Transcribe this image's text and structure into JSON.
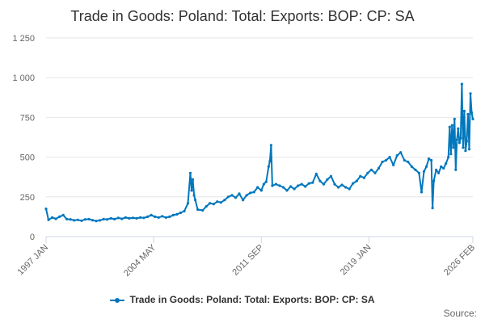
{
  "chart_data": {
    "type": "line",
    "title": "Trade in Goods: Poland: Total: Exports: BOP: CP: SA",
    "xlabel": "",
    "ylabel": "",
    "ylim": [
      0,
      1250
    ],
    "yticks": [
      0,
      250,
      500,
      750,
      1000,
      1250
    ],
    "ytick_labels": [
      "0",
      "250",
      "500",
      "750",
      "1 000",
      "1 250"
    ],
    "xtick_labels": [
      "1997 JAN",
      "2004 MAY",
      "2011 SEP",
      "2019 JAN",
      "2026 FEB"
    ],
    "x_start": "1997 JAN",
    "x_end": "2026 FEB",
    "grid": "horizontal",
    "legend_position": "bottom",
    "series": [
      {
        "name": "Trade in Goods: Poland: Total: Exports: BOP: CP: SA",
        "color": "#0077bd",
        "points": [
          [
            "1997-01",
            175
          ],
          [
            "1997-03",
            105
          ],
          [
            "1997-06",
            120
          ],
          [
            "1997-09",
            112
          ],
          [
            "1997-12",
            125
          ],
          [
            "1998-03",
            135
          ],
          [
            "1998-06",
            110
          ],
          [
            "1998-09",
            108
          ],
          [
            "1998-12",
            102
          ],
          [
            "1999-03",
            105
          ],
          [
            "1999-06",
            100
          ],
          [
            "1999-09",
            108
          ],
          [
            "1999-12",
            110
          ],
          [
            "2000-03",
            103
          ],
          [
            "2000-06",
            98
          ],
          [
            "2000-09",
            102
          ],
          [
            "2000-12",
            110
          ],
          [
            "2001-03",
            108
          ],
          [
            "2001-06",
            115
          ],
          [
            "2001-09",
            110
          ],
          [
            "2001-12",
            118
          ],
          [
            "2002-03",
            112
          ],
          [
            "2002-06",
            120
          ],
          [
            "2002-09",
            115
          ],
          [
            "2002-12",
            118
          ],
          [
            "2003-03",
            115
          ],
          [
            "2003-06",
            120
          ],
          [
            "2003-09",
            118
          ],
          [
            "2003-12",
            125
          ],
          [
            "2004-03",
            135
          ],
          [
            "2004-06",
            125
          ],
          [
            "2004-09",
            120
          ],
          [
            "2004-12",
            128
          ],
          [
            "2005-03",
            120
          ],
          [
            "2005-06",
            125
          ],
          [
            "2005-09",
            135
          ],
          [
            "2005-12",
            140
          ],
          [
            "2006-03",
            150
          ],
          [
            "2006-06",
            160
          ],
          [
            "2006-09",
            210
          ],
          [
            "2006-11",
            400
          ],
          [
            "2006-12",
            290
          ],
          [
            "2007-01",
            360
          ],
          [
            "2007-02",
            260
          ],
          [
            "2007-03",
            230
          ],
          [
            "2007-05",
            170
          ],
          [
            "2007-09",
            165
          ],
          [
            "2007-12",
            190
          ],
          [
            "2008-03",
            210
          ],
          [
            "2008-06",
            205
          ],
          [
            "2008-09",
            220
          ],
          [
            "2008-12",
            215
          ],
          [
            "2009-03",
            230
          ],
          [
            "2009-06",
            250
          ],
          [
            "2009-09",
            260
          ],
          [
            "2009-12",
            245
          ],
          [
            "2010-03",
            270
          ],
          [
            "2010-06",
            230
          ],
          [
            "2010-09",
            260
          ],
          [
            "2010-12",
            275
          ],
          [
            "2011-03",
            280
          ],
          [
            "2011-06",
            310
          ],
          [
            "2011-09",
            290
          ],
          [
            "2011-11",
            330
          ],
          [
            "2012-01",
            345
          ],
          [
            "2012-03",
            440
          ],
          [
            "2012-04",
            475
          ],
          [
            "2012-05",
            575
          ],
          [
            "2012-06",
            320
          ],
          [
            "2012-09",
            330
          ],
          [
            "2012-12",
            320
          ],
          [
            "2013-03",
            310
          ],
          [
            "2013-06",
            290
          ],
          [
            "2013-09",
            315
          ],
          [
            "2013-12",
            300
          ],
          [
            "2014-03",
            320
          ],
          [
            "2014-06",
            330
          ],
          [
            "2014-09",
            315
          ],
          [
            "2014-12",
            335
          ],
          [
            "2015-03",
            340
          ],
          [
            "2015-06",
            395
          ],
          [
            "2015-09",
            350
          ],
          [
            "2015-12",
            330
          ],
          [
            "2016-03",
            360
          ],
          [
            "2016-06",
            380
          ],
          [
            "2016-09",
            330
          ],
          [
            "2016-12",
            310
          ],
          [
            "2017-03",
            325
          ],
          [
            "2017-06",
            310
          ],
          [
            "2017-09",
            300
          ],
          [
            "2017-12",
            335
          ],
          [
            "2018-03",
            350
          ],
          [
            "2018-06",
            380
          ],
          [
            "2018-09",
            370
          ],
          [
            "2018-12",
            400
          ],
          [
            "2019-03",
            420
          ],
          [
            "2019-06",
            400
          ],
          [
            "2019-09",
            430
          ],
          [
            "2019-12",
            470
          ],
          [
            "2020-03",
            480
          ],
          [
            "2020-06",
            500
          ],
          [
            "2020-09",
            450
          ],
          [
            "2020-12",
            510
          ],
          [
            "2021-03",
            530
          ],
          [
            "2021-06",
            480
          ],
          [
            "2021-09",
            470
          ],
          [
            "2021-12",
            440
          ],
          [
            "2022-03",
            420
          ],
          [
            "2022-06",
            400
          ],
          [
            "2022-08",
            280
          ],
          [
            "2022-10",
            410
          ],
          [
            "2022-12",
            440
          ],
          [
            "2023-02",
            490
          ],
          [
            "2023-04",
            480
          ],
          [
            "2023-05",
            180
          ],
          [
            "2023-06",
            350
          ],
          [
            "2023-08",
            420
          ],
          [
            "2023-10",
            400
          ],
          [
            "2023-12",
            440
          ],
          [
            "2024-02",
            430
          ],
          [
            "2024-04",
            460
          ],
          [
            "2024-06",
            500
          ],
          [
            "2024-07",
            690
          ],
          [
            "2024-08",
            520
          ],
          [
            "2024-09",
            700
          ],
          [
            "2024-10",
            560
          ],
          [
            "2024-11",
            740
          ],
          [
            "2024-12",
            420
          ],
          [
            "2025-01",
            610
          ],
          [
            "2025-02",
            680
          ],
          [
            "2025-03",
            590
          ],
          [
            "2025-04",
            620
          ],
          [
            "2025-05",
            960
          ],
          [
            "2025-06",
            560
          ],
          [
            "2025-07",
            790
          ],
          [
            "2025-08",
            540
          ],
          [
            "2025-09",
            600
          ],
          [
            "2025-10",
            770
          ],
          [
            "2025-11",
            550
          ],
          [
            "2025-12",
            900
          ],
          [
            "2026-01",
            780
          ],
          [
            "2026-02",
            740
          ]
        ]
      }
    ]
  },
  "legend": {
    "label": "Trade in Goods: Poland: Total: Exports: BOP: CP: SA"
  },
  "footer": {
    "source_label": "Source:"
  },
  "colors": {
    "series": "#0077bd",
    "grid": "#e6e6e6",
    "axis_text": "#666666",
    "title_text": "#323132"
  }
}
